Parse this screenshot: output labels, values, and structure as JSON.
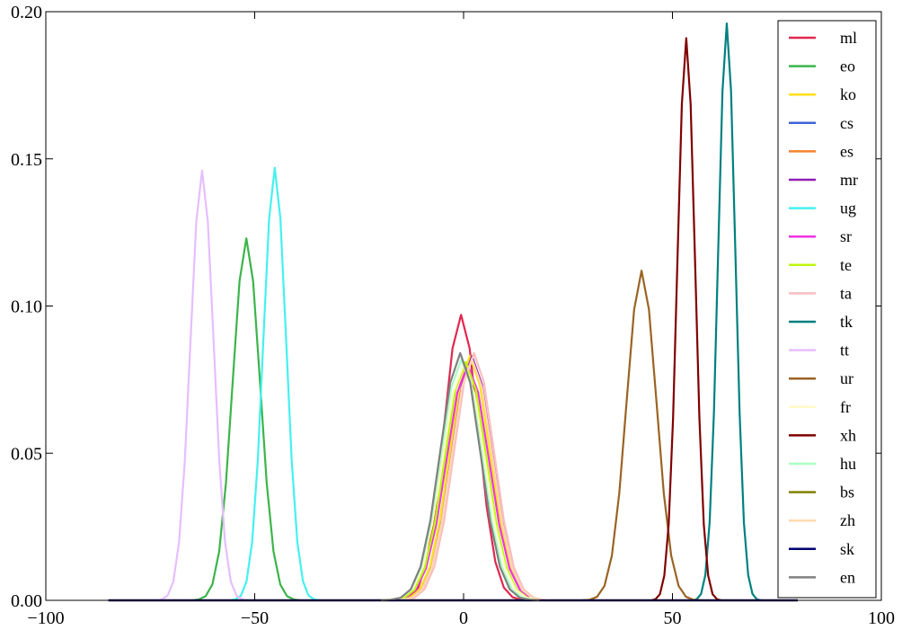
{
  "chart_data": {
    "type": "line",
    "xlim": [
      -100,
      100
    ],
    "xticks": [
      {
        "value": -100,
        "label": "−100"
      },
      {
        "value": -50,
        "label": "−50"
      },
      0,
      50,
      100
    ],
    "ylim": [
      0,
      0.2
    ],
    "yticks": [
      {
        "value": 0,
        "label": "0.00"
      },
      {
        "value": 0.05,
        "label": "0.05"
      },
      {
        "value": 0.1,
        "label": "0.10"
      },
      {
        "value": 0.15,
        "label": "0.15"
      },
      {
        "value": 0.2,
        "label": "0.20"
      }
    ],
    "grid": false,
    "legend": "upper right",
    "series": [
      {
        "name": "ml",
        "color": "#e0284f",
        "x": [
          -17.0,
          -14.95,
          -12.9,
          -10.85,
          -8.8,
          -6.75,
          -4.7,
          -2.65,
          -0.6,
          1.45,
          3.5,
          5.55,
          7.6,
          9.65,
          11.7,
          13.75,
          15.8
        ],
        "values": [
          0,
          0.0002,
          0.0011,
          0.0043,
          0.0131,
          0.0315,
          0.0588,
          0.0856,
          0.097,
          0.0856,
          0.0588,
          0.0315,
          0.0131,
          0.0043,
          0.0011,
          0.0002,
          0
        ]
      },
      {
        "name": "eo",
        "color": "#3cb44b",
        "x": [
          -65,
          -63.38,
          -61.75,
          -60.13,
          -58.5,
          -56.88,
          -55.25,
          -53.63,
          -52,
          -50.38,
          -48.75,
          -47.13,
          -45.5,
          -43.88,
          -42.25,
          -40.63,
          -39
        ],
        "values": [
          0,
          0.0003,
          0.0014,
          0.0054,
          0.0166,
          0.0399,
          0.0746,
          0.1085,
          0.123,
          0.1085,
          0.0746,
          0.0399,
          0.0166,
          0.0054,
          0.0014,
          0.0003,
          0
        ]
      },
      {
        "name": "ko",
        "color": "#ffe119",
        "x": [
          -17.7,
          -15.3,
          -12.9,
          -10.5,
          -8.1,
          -5.7,
          -3.3,
          -0.9,
          1.5,
          3.9,
          6.3,
          8.7,
          11.1,
          13.5,
          15.9,
          18.3,
          20.7
        ],
        "values": [
          0,
          0.0002,
          0.0009,
          0.0036,
          0.0112,
          0.027,
          0.0503,
          0.0732,
          0.083,
          0.0732,
          0.0503,
          0.027,
          0.0112,
          0.0036,
          0.0009,
          0.0002,
          0
        ]
      },
      {
        "name": "cs",
        "color": "#4363d8",
        "x": [
          -85,
          80
        ],
        "values": [
          0,
          0
        ]
      },
      {
        "name": "es",
        "color": "#f58231",
        "x": [
          -85,
          80
        ],
        "values": [
          0,
          0
        ]
      },
      {
        "name": "mr",
        "color": "#911eb4",
        "x": [
          -17.2,
          -14.8,
          -12.4,
          -10,
          -7.6,
          -5.2,
          -2.8,
          -0.4,
          2,
          4.4,
          6.8,
          9.2,
          11.6,
          14,
          16.4,
          18.8,
          21.2
        ],
        "values": [
          0,
          0.0002,
          0.0009,
          0.0036,
          0.0112,
          0.027,
          0.0503,
          0.0732,
          0.083,
          0.0732,
          0.0503,
          0.027,
          0.0112,
          0.0036,
          0.0009,
          0.0002,
          0
        ]
      },
      {
        "name": "ug",
        "color": "#46f0f0",
        "x": [
          -56.0,
          -54.65,
          -53.3,
          -51.95,
          -50.6,
          -49.25,
          -47.9,
          -46.55,
          -45.2,
          -43.85,
          -42.5,
          -41.15,
          -39.8,
          -38.45,
          -37.1,
          -35.75,
          -34.4
        ],
        "values": [
          0,
          0.0003,
          0.0016,
          0.0065,
          0.0199,
          0.0477,
          0.0892,
          0.1297,
          0.147,
          0.1297,
          0.0892,
          0.0477,
          0.0199,
          0.0065,
          0.0016,
          0.0003,
          0
        ]
      },
      {
        "name": "sr",
        "color": "#f032e6",
        "x": [
          -19,
          -16.5,
          -14,
          -11.5,
          -9,
          -6.5,
          -4,
          -1.5,
          1,
          3.5,
          6,
          8.5,
          11,
          13.5,
          16,
          18.5,
          21
        ],
        "values": [
          0,
          0.0002,
          0.0009,
          0.0035,
          0.0108,
          0.026,
          0.0485,
          0.0706,
          0.08,
          0.0706,
          0.0485,
          0.026,
          0.0108,
          0.0035,
          0.0009,
          0.0002,
          0
        ]
      },
      {
        "name": "te",
        "color": "#bcf60c",
        "x": [
          -19.1,
          -16.65,
          -14.2,
          -11.75,
          -9.3,
          -6.85,
          -4.4,
          -1.95,
          0.5,
          2.95,
          5.4,
          7.85,
          10.3,
          12.75,
          15.2,
          17.65,
          20.1
        ],
        "values": [
          0,
          0.0002,
          0.0009,
          0.0036,
          0.011,
          0.0263,
          0.0491,
          0.0715,
          0.081,
          0.0715,
          0.0491,
          0.0263,
          0.011,
          0.0036,
          0.0009,
          0.0002,
          0
        ]
      },
      {
        "name": "ta",
        "color": "#fabebe",
        "x": [
          -16.5,
          -14.125,
          -11.75,
          -9.375,
          -7,
          -4.625,
          -2.25,
          0.125,
          2.5,
          4.875,
          7.25,
          9.625,
          12,
          14.375,
          16.75,
          19.125,
          21.5
        ],
        "values": [
          0,
          0.0002,
          0.0009,
          0.0037,
          0.0114,
          0.0273,
          0.0509,
          0.0741,
          0.084,
          0.0741,
          0.0509,
          0.0273,
          0.0114,
          0.0037,
          0.0009,
          0.0002,
          0
        ]
      },
      {
        "name": "tk",
        "color": "#008080",
        "x": [
          54.8,
          55.825,
          56.85,
          57.875,
          58.9,
          59.925,
          60.95,
          61.975,
          63,
          64.025,
          65.05,
          66.075,
          67.1,
          68.125,
          69.15,
          70.175,
          71.2
        ],
        "values": [
          0,
          0.0004,
          0.0022,
          0.0086,
          0.0265,
          0.0636,
          0.1189,
          0.173,
          0.196,
          0.173,
          0.1189,
          0.0636,
          0.0265,
          0.0086,
          0.0022,
          0.0004,
          0
        ]
      },
      {
        "name": "tt",
        "color": "#e6beff",
        "x": [
          -73.6,
          -72.225,
          -70.85,
          -69.475,
          -68.1,
          -66.725,
          -65.35,
          -63.975,
          -62.6,
          -61.225,
          -59.85,
          -58.475,
          -57.1,
          -55.725,
          -54.35,
          -52.975,
          -51.6
        ],
        "values": [
          0,
          0.0003,
          0.0016,
          0.0064,
          0.0198,
          0.0474,
          0.0886,
          0.1288,
          0.146,
          0.1288,
          0.0886,
          0.0474,
          0.0198,
          0.0064,
          0.0016,
          0.0003,
          0
        ]
      },
      {
        "name": "ur",
        "color": "#9a6324",
        "x": [
          28.4,
          30.175,
          31.95,
          33.725,
          35.5,
          37.275,
          39.05,
          40.825,
          42.6,
          44.375,
          46.15,
          47.925,
          49.7,
          51.475,
          53.25,
          55.025,
          56.8
        ],
        "values": [
          0,
          0.0002,
          0.0012,
          0.0049,
          0.0152,
          0.0364,
          0.0679,
          0.0988,
          0.112,
          0.0988,
          0.0679,
          0.0364,
          0.0152,
          0.0049,
          0.0012,
          0.0002,
          0
        ]
      },
      {
        "name": "fr",
        "color": "#fffac8",
        "x": [
          -20,
          -17.5,
          -15,
          -12.5,
          -10,
          -7.5,
          -5,
          -2.5,
          0,
          2.5,
          5,
          7.5,
          10,
          12.5,
          15,
          17.5,
          20
        ],
        "values": [
          0,
          0.0002,
          0.0009,
          0.0035,
          0.0108,
          0.026,
          0.0485,
          0.0706,
          0.08,
          0.0706,
          0.0485,
          0.026,
          0.0108,
          0.0035,
          0.0009,
          0.0002,
          0
        ]
      },
      {
        "name": "xh",
        "color": "#800000",
        "x": [
          44.9,
          45.95,
          47.0,
          48.05,
          49.1,
          50.15,
          51.2,
          52.25,
          53.3,
          54.35,
          55.4,
          56.45,
          57.5,
          58.55,
          59.6,
          60.65,
          61.7
        ],
        "values": [
          0,
          0.0004,
          0.0021,
          0.0084,
          0.0258,
          0.062,
          0.1158,
          0.1686,
          0.191,
          0.1686,
          0.1158,
          0.062,
          0.0258,
          0.0084,
          0.0021,
          0.0004,
          0
        ]
      },
      {
        "name": "hu",
        "color": "#aaffc3",
        "x": [
          -19.9,
          -17.475,
          -15.05,
          -12.625,
          -10.2,
          -7.775,
          -5.35,
          -2.925,
          -0.5,
          1.925,
          4.35,
          6.775,
          9.2,
          11.625,
          14.05,
          16.475,
          18.9
        ],
        "values": [
          0,
          0.0002,
          0.0009,
          0.0036,
          0.0111,
          0.0266,
          0.0497,
          0.0724,
          0.082,
          0.0724,
          0.0497,
          0.0266,
          0.0111,
          0.0036,
          0.0009,
          0.0002,
          0
        ]
      },
      {
        "name": "bs",
        "color": "#808000",
        "x": [
          -85,
          80
        ],
        "values": [
          0,
          0
        ]
      },
      {
        "name": "zh",
        "color": "#ffd8b1",
        "x": [
          -17.2,
          -14.8,
          -12.4,
          -10,
          -7.6,
          -5.2,
          -2.8,
          -0.4,
          2,
          4.4,
          6.8,
          9.2,
          11.6,
          14,
          16.4,
          18.8,
          21.2
        ],
        "values": [
          0,
          0.0002,
          0.0009,
          0.0036,
          0.0111,
          0.0266,
          0.0497,
          0.0724,
          0.082,
          0.0724,
          0.0497,
          0.0266,
          0.0111,
          0.0036,
          0.0009,
          0.0002,
          0
        ]
      },
      {
        "name": "sk",
        "color": "#000075",
        "x": [
          -85,
          80
        ],
        "values": [
          0,
          0
        ]
      },
      {
        "name": "en",
        "color": "#808080",
        "x": [
          -19.8,
          -17.425,
          -15.05,
          -12.675,
          -10.3,
          -7.925,
          -5.55,
          -3.175,
          -0.8,
          1.575,
          3.95,
          6.325,
          8.7,
          11.075,
          13.45,
          15.825,
          18.2
        ],
        "values": [
          0,
          0.0002,
          0.0009,
          0.0037,
          0.0114,
          0.0273,
          0.0509,
          0.0741,
          0.084,
          0.0741,
          0.0509,
          0.0273,
          0.0114,
          0.0037,
          0.0009,
          0.0002,
          0
        ]
      }
    ]
  }
}
